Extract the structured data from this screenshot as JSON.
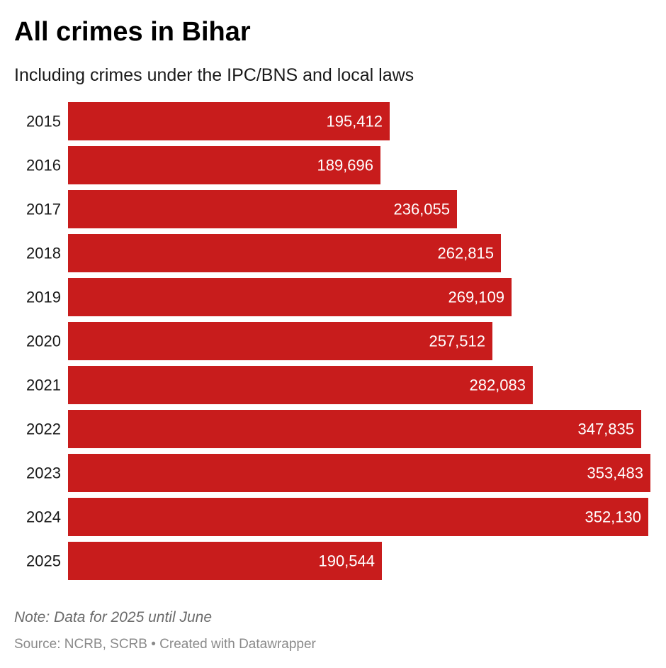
{
  "header": {
    "title": "All crimes in Bihar",
    "subtitle": "Including crimes under the IPC/BNS and local laws"
  },
  "footer": {
    "note": "Note: Data for 2025 until June",
    "source": "Source: NCRB, SCRB • Created with Datawrapper"
  },
  "colors": {
    "bar": "#c81c1c",
    "bar_label": "#ffffff",
    "category_label": "#1a1a1a"
  },
  "chart_data": {
    "type": "bar",
    "orientation": "horizontal",
    "title": "All crimes in Bihar",
    "subtitle": "Including crimes under the IPC/BNS and local laws",
    "categories": [
      "2015",
      "2016",
      "2017",
      "2018",
      "2019",
      "2020",
      "2021",
      "2022",
      "2023",
      "2024",
      "2025"
    ],
    "values": [
      195412,
      189696,
      236055,
      262815,
      269109,
      257512,
      282083,
      347835,
      353483,
      352130,
      190544
    ],
    "value_labels": [
      "195,412",
      "189,696",
      "236,055",
      "262,815",
      "269,109",
      "257,512",
      "282,083",
      "347,835",
      "353,483",
      "352,130",
      "190,544"
    ],
    "xlabel": "",
    "ylabel": "",
    "xlim": [
      0,
      353483
    ],
    "grid": false,
    "legend": "none"
  }
}
